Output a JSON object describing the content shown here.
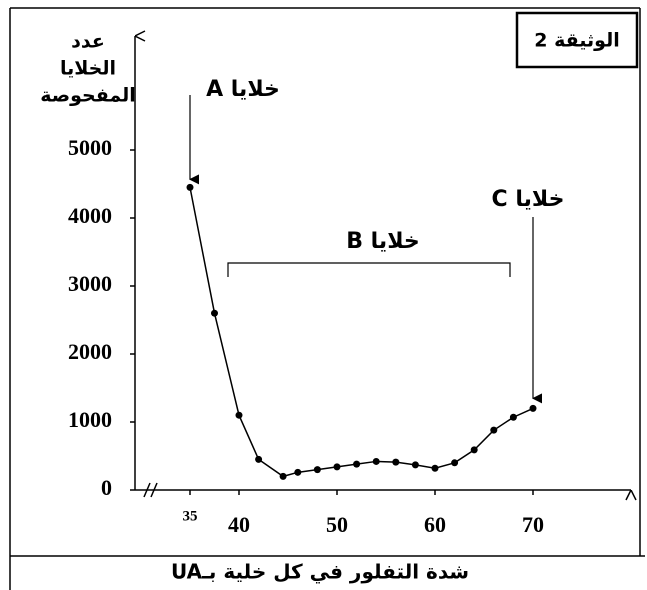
{
  "chart_data": {
    "type": "line",
    "document_label": "الوثيقة 2",
    "y_label_lines": [
      "عدد",
      "الخلايا",
      "المفحوصة"
    ],
    "x_label": "شدة التفلور في كل خلية بـUA",
    "x": [
      35,
      37.5,
      40,
      42,
      44.5,
      46,
      48,
      50,
      52,
      54,
      56,
      58,
      60,
      62,
      64,
      66,
      68,
      70
    ],
    "values": [
      4450,
      2600,
      1100,
      450,
      200,
      260,
      300,
      340,
      380,
      420,
      410,
      370,
      320,
      400,
      590,
      880,
      1070,
      1200
    ],
    "color": "#000000",
    "xlim": [
      30,
      80
    ],
    "xticks": [
      35,
      40,
      50,
      60,
      70
    ],
    "ylim": [
      0,
      6500
    ],
    "yticks": [
      0,
      1000,
      2000,
      3000,
      4000,
      5000
    ],
    "grid": false,
    "annotations": [
      "خلايا A",
      "خلايا B",
      "خلايا C"
    ]
  }
}
